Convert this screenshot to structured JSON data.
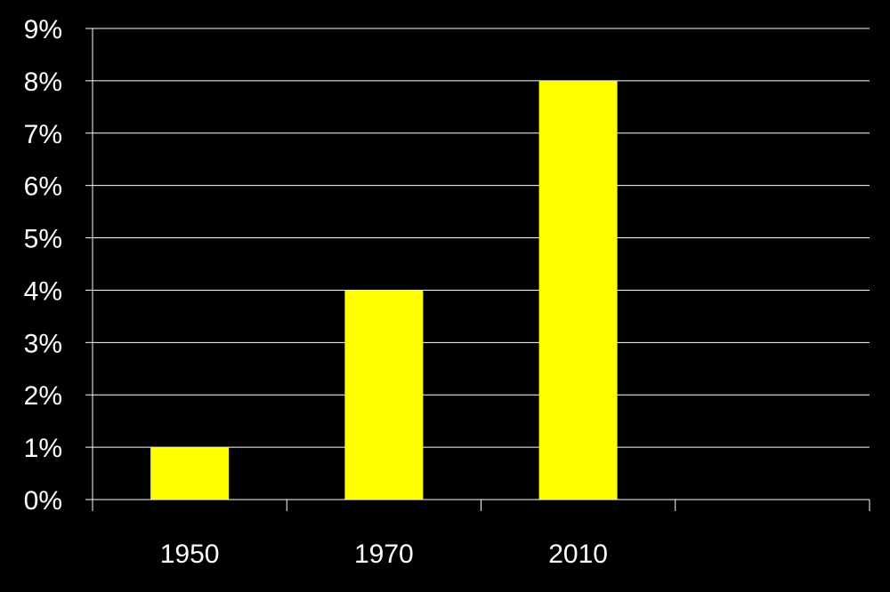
{
  "chart_data": {
    "type": "bar",
    "categories": [
      "1950",
      "1970",
      "2010"
    ],
    "series": [
      {
        "values": [
          1,
          4,
          8
        ]
      }
    ],
    "category_slots": 4,
    "y_ticks": [
      "0%",
      "1%",
      "2%",
      "3%",
      "4%",
      "5%",
      "6%",
      "7%",
      "8%",
      "9%"
    ],
    "ylim": [
      0,
      9
    ],
    "y_unit": "%",
    "grid": true,
    "legend": "none"
  },
  "colors": {
    "background": "#000000",
    "bar": "#ffff00",
    "axis": "#ffffff",
    "gridline": "#ffffff",
    "text": "#ffffff"
  }
}
